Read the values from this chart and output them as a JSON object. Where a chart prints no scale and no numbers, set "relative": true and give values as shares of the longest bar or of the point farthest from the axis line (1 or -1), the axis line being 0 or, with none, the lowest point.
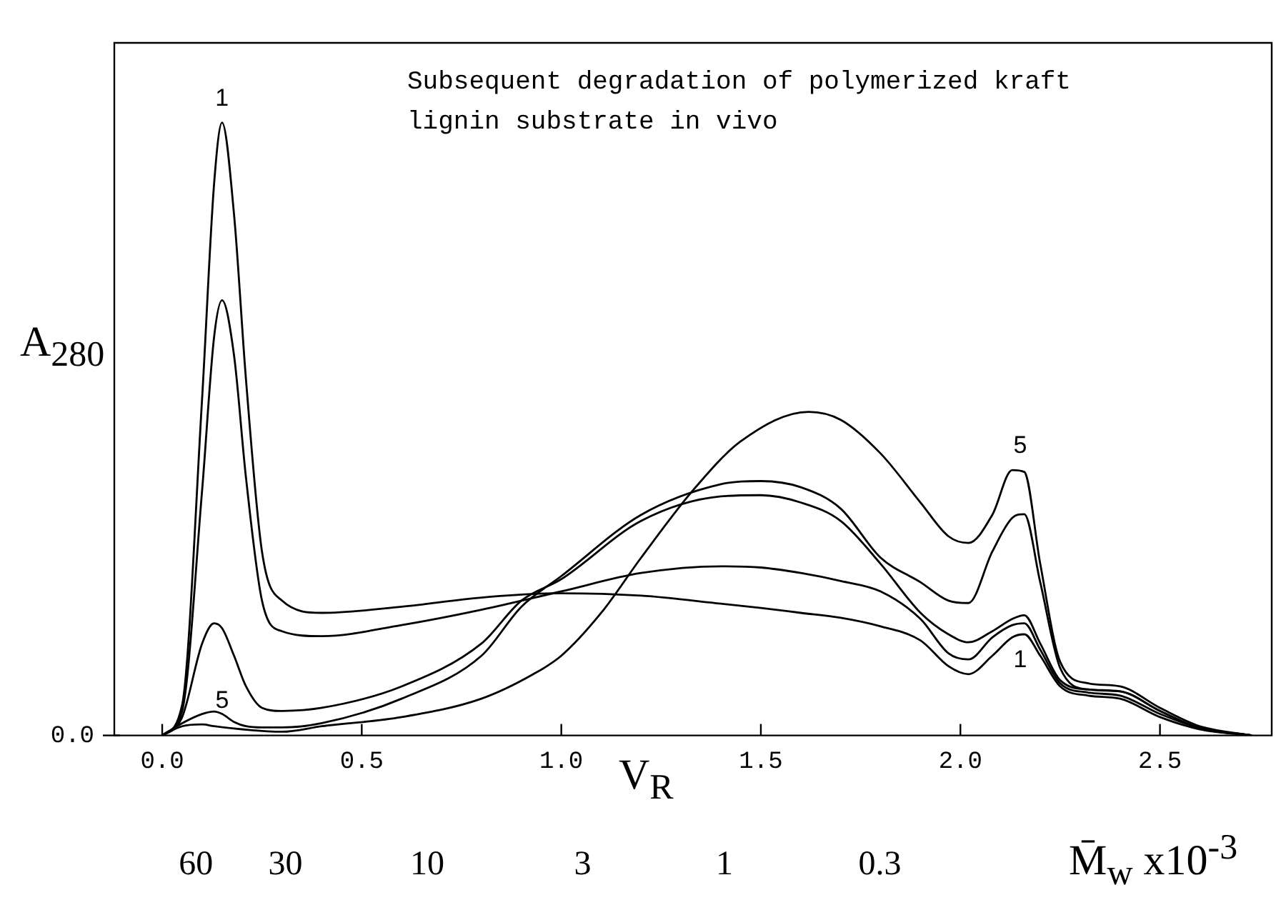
{
  "chart_data": {
    "type": "line",
    "title": "Subsequent degradation of polymerized kraft lignin substrate in vivo",
    "xlabel": "V$_{R}$",
    "ylabel": "A$_{280}$",
    "x2label": "M̄$_{w}$ x10$^{-3}$",
    "relative": true,
    "marker": "none",
    "line_style": "solid",
    "xlim": [
      -0.12,
      2.78
    ],
    "xticks": [
      {
        "value": 0,
        "label": "0.0"
      },
      0.5,
      {
        "value": 1,
        "label": "1.0"
      },
      1.5,
      {
        "value": 2,
        "label": "2.0"
      },
      2.5
    ],
    "x2lim": [
      113,
      0.0144
    ],
    "x2ticks": [
      60,
      30,
      10,
      3,
      1,
      0.3
    ],
    "log": "x2",
    "series": [
      {
        "color": "#000000",
        "x": [
          0,
          0.05,
          0.1,
          0.13,
          0.15,
          0.18,
          0.21,
          0.25,
          0.3,
          0.4,
          0.6,
          0.8,
          1.0,
          1.2,
          1.4,
          1.5,
          1.6,
          1.7,
          1.8,
          1.9,
          1.97,
          2.02,
          2.08,
          2.13,
          2.16,
          2.2,
          2.25,
          2.32,
          2.4,
          2.5,
          2.6,
          2.73
        ],
        "values": [
          0,
          0.05,
          0.55,
          0.9,
          1.0,
          0.85,
          0.58,
          0.3,
          0.22,
          0.2,
          0.21,
          0.225,
          0.232,
          0.228,
          0.215,
          0.208,
          0.2,
          0.192,
          0.178,
          0.155,
          0.113,
          0.1,
          0.13,
          0.16,
          0.165,
          0.13,
          0.08,
          0.065,
          0.06,
          0.03,
          0.01,
          0
        ]
      },
      {
        "color": "#000000",
        "x": [
          0,
          0.05,
          0.1,
          0.13,
          0.15,
          0.18,
          0.21,
          0.25,
          0.3,
          0.4,
          0.6,
          0.8,
          1.0,
          1.2,
          1.4,
          1.5,
          1.6,
          1.7,
          1.8,
          1.9,
          1.97,
          2.02,
          2.08,
          2.13,
          2.16,
          2.2,
          2.25,
          2.32,
          2.4,
          2.5,
          2.6,
          2.73
        ],
        "values": [
          0,
          0.04,
          0.4,
          0.65,
          0.71,
          0.62,
          0.42,
          0.22,
          0.17,
          0.162,
          0.18,
          0.205,
          0.235,
          0.265,
          0.276,
          0.274,
          0.265,
          0.252,
          0.235,
          0.19,
          0.134,
          0.124,
          0.16,
          0.18,
          0.183,
          0.14,
          0.085,
          0.07,
          0.065,
          0.035,
          0.012,
          0
        ]
      },
      {
        "color": "#000000",
        "x": [
          0,
          0.05,
          0.1,
          0.13,
          0.15,
          0.18,
          0.21,
          0.25,
          0.3,
          0.4,
          0.6,
          0.8,
          0.9,
          1.0,
          1.2,
          1.4,
          1.5,
          1.6,
          1.7,
          1.8,
          1.9,
          1.97,
          2.02,
          2.08,
          2.13,
          2.16,
          2.2,
          2.25,
          2.32,
          2.4,
          2.5,
          2.6,
          2.73
        ],
        "values": [
          0,
          0.03,
          0.15,
          0.183,
          0.175,
          0.13,
          0.08,
          0.045,
          0.04,
          0.045,
          0.08,
          0.15,
          0.22,
          0.255,
          0.35,
          0.39,
          0.392,
          0.38,
          0.35,
          0.28,
          0.2,
          0.165,
          0.152,
          0.17,
          0.19,
          0.196,
          0.15,
          0.09,
          0.075,
          0.072,
          0.04,
          0.012,
          0
        ]
      },
      {
        "color": "#000000",
        "x": [
          0,
          0.05,
          0.1,
          0.13,
          0.15,
          0.18,
          0.21,
          0.25,
          0.3,
          0.4,
          0.6,
          0.8,
          0.9,
          1.0,
          1.2,
          1.4,
          1.5,
          1.6,
          1.7,
          1.8,
          1.9,
          1.97,
          2.02,
          2.08,
          2.13,
          2.16,
          2.2,
          2.25,
          2.32,
          2.4,
          2.5,
          2.6,
          2.73
        ],
        "values": [
          0,
          0.02,
          0.035,
          0.039,
          0.035,
          0.022,
          0.015,
          0.013,
          0.013,
          0.02,
          0.06,
          0.13,
          0.21,
          0.26,
          0.36,
          0.41,
          0.415,
          0.405,
          0.37,
          0.29,
          0.25,
          0.22,
          0.216,
          0.3,
          0.355,
          0.361,
          0.25,
          0.11,
          0.075,
          0.072,
          0.04,
          0.012,
          0
        ]
      },
      {
        "color": "#000000",
        "x": [
          0,
          0.05,
          0.1,
          0.13,
          0.2,
          0.3,
          0.4,
          0.6,
          0.8,
          0.93,
          1.0,
          1.1,
          1.2,
          1.33,
          1.45,
          1.62,
          1.7,
          1.8,
          1.9,
          1.97,
          2.02,
          2.08,
          2.13,
          2.16,
          2.2,
          2.25,
          2.32,
          2.4,
          2.5,
          2.6,
          2.73
        ],
        "values": [
          0,
          0.015,
          0.018,
          0.015,
          0.01,
          0.006,
          0.015,
          0.03,
          0.06,
          0.1,
          0.13,
          0.2,
          0.29,
          0.4,
          0.48,
          0.528,
          0.515,
          0.46,
          0.38,
          0.325,
          0.314,
          0.36,
          0.433,
          0.43,
          0.28,
          0.12,
          0.085,
          0.08,
          0.045,
          0.015,
          0
        ]
      }
    ],
    "annotations": [
      {
        "text": "1",
        "x": 0.15,
        "y": 1.0
      },
      {
        "text": "5",
        "x": 0.1,
        "y": 0.018
      },
      {
        "text": "5",
        "x": 2.15,
        "y": 0.433
      },
      {
        "text": "1",
        "x": 2.15,
        "y": 0.165
      },
      "0.0"
    ]
  }
}
